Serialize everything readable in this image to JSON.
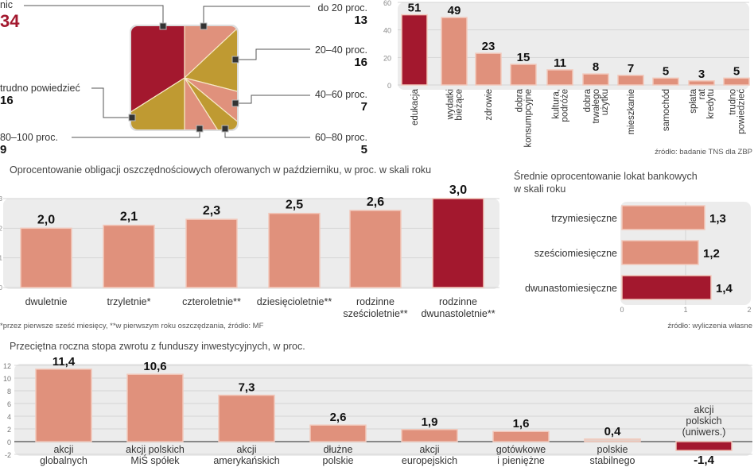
{
  "colors": {
    "highlight": "#a3182e",
    "salmon": "#e0917c",
    "gold": "#bf9a32",
    "panel": "#ececec"
  },
  "chart_data": [
    {
      "type": "pie",
      "slices": [
        {
          "label": "do 20 proc.",
          "value": 13,
          "color": "#e0917c"
        },
        {
          "label": "20–40 proc.",
          "value": 16,
          "color": "#bf9a32"
        },
        {
          "label": "40–60 proc.",
          "value": 7,
          "color": "#e0917c"
        },
        {
          "label": "60–80 proc.",
          "value": 5,
          "color": "#bf9a32"
        },
        {
          "label": "80–100 proc.",
          "value": 9,
          "color": "#e0917c"
        },
        {
          "label": "trudno powiedzieć",
          "value": 16,
          "color": "#bf9a32"
        },
        {
          "label": "nic",
          "value": 34,
          "color": "#a3182e"
        }
      ]
    },
    {
      "type": "bar",
      "categories": [
        "edukacja",
        "wydatki bieżące",
        "zdrowie",
        "dobra konsumpcyjne",
        "kultura, podróże",
        "dobra trwałego użytku",
        "mieszkanie",
        "samochód",
        "spłata rat kredytu",
        "trudno powiedzieć"
      ],
      "values": [
        51,
        49,
        23,
        15,
        11,
        8,
        7,
        5,
        3,
        5
      ],
      "value_labels": [
        "51",
        "49",
        "23",
        "15",
        "11",
        "8",
        "7",
        "5",
        "3",
        "5"
      ],
      "highlight_index": 0,
      "ylim": [
        0,
        60
      ],
      "yticks": [
        "0",
        "20",
        "40",
        "60"
      ],
      "grid": true,
      "source": "źródło: badanie TNS dla ZBP"
    },
    {
      "type": "bar",
      "title": "Oprocentowanie obligacji oszczędnościowych oferowanych w październiku, w proc. w skali roku",
      "categories": [
        [
          "dwuletnie"
        ],
        [
          "trzyletnie*"
        ],
        [
          "czteroletnie**"
        ],
        [
          "dziesięcioletnie**"
        ],
        [
          "rodzinne",
          "sześcioletnie**"
        ],
        [
          "rodzinne",
          "dwunastoletnie**"
        ]
      ],
      "values": [
        2.0,
        2.1,
        2.3,
        2.5,
        2.6,
        3.0
      ],
      "value_labels": [
        "2,0",
        "2,1",
        "2,3",
        "2,5",
        "2,6",
        "3,0"
      ],
      "highlight_index": 5,
      "ylim": [
        0,
        3
      ],
      "yticks": [
        "0",
        "1",
        "2",
        "3"
      ],
      "grid": true,
      "footnote": "*przez pierwsze sześć miesięcy, **w pierwszym roku oszczędzania, źródło: MF"
    },
    {
      "type": "bar",
      "orientation": "horizontal",
      "title": [
        "Średnie oprocentowanie lokat bankowych",
        "w skali roku"
      ],
      "categories": [
        "trzymiesięczne",
        "sześciomiesięczne",
        "dwunastomiesięczne"
      ],
      "values": [
        1.3,
        1.2,
        1.4
      ],
      "value_labels": [
        "1,3",
        "1,2",
        "1,4"
      ],
      "highlight_index": 2,
      "xlim": [
        0,
        2
      ],
      "xticks": [
        "0",
        "1",
        "2"
      ],
      "grid": true,
      "source": "źródło: wyliczenia własne"
    },
    {
      "type": "bar",
      "title": "Przeciętna roczna stopa zwrotu z funduszy inwestycyjnych, w proc.",
      "categories": [
        [
          "akcji",
          "globalnych"
        ],
        [
          "akcji polskich",
          "MiŚ spółek"
        ],
        [
          "akcji",
          "amerykańskich"
        ],
        [
          "dłużne",
          "polskie"
        ],
        [
          "akcji",
          "europejskich"
        ],
        [
          "gotówkowe",
          "i pieniężne"
        ],
        [
          "polskie",
          "stabilnego"
        ],
        [
          "akcji",
          "polskich",
          "(uniwers.)"
        ]
      ],
      "values": [
        11.4,
        10.6,
        7.3,
        2.6,
        1.9,
        1.6,
        0.4,
        -1.4
      ],
      "value_labels": [
        "11,4",
        "10,6",
        "7,3",
        "2,6",
        "1,9",
        "1,6",
        "0,4",
        "-1,4"
      ],
      "highlight_index": 7,
      "ylim": [
        -2,
        12
      ],
      "yticks": [
        "-2",
        "0",
        "2",
        "4",
        "6",
        "8",
        "10",
        "12"
      ],
      "grid": true
    }
  ]
}
